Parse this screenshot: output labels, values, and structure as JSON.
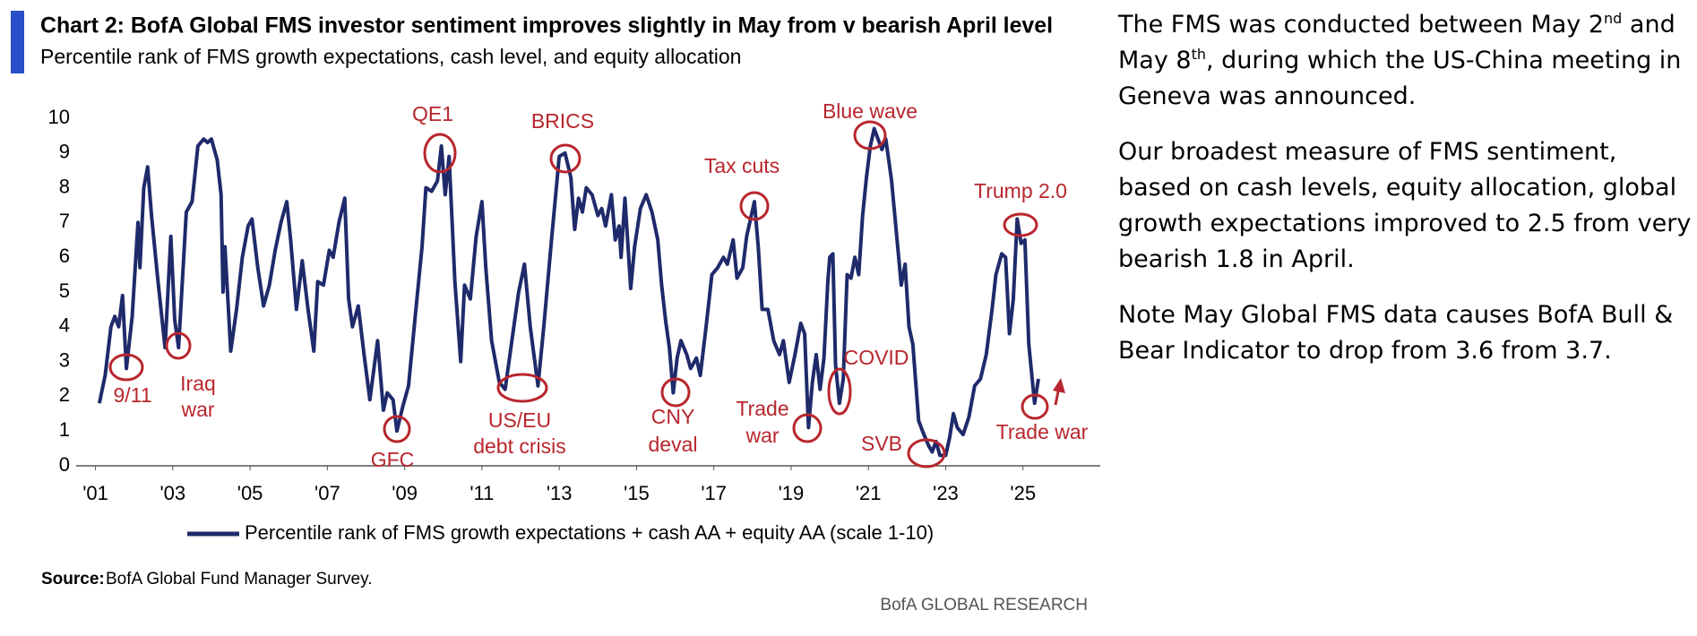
{
  "chart_data": {
    "type": "line",
    "title": "Chart 2: BofA Global FMS investor sentiment improves slightly in May from v bearish April level",
    "subtitle": "Percentile rank of FMS growth expectations, cash level, and equity allocation",
    "source_label": "Source:",
    "source_text": "BofA Global Fund Manager Survey.",
    "footer": "BofA GLOBAL RESEARCH",
    "xlim": [
      2000.5,
      2027
    ],
    "ylim": [
      0,
      10
    ],
    "yticks": [
      0,
      1,
      2,
      3,
      4,
      5,
      6,
      7,
      8,
      9,
      10
    ],
    "xticks": [
      {
        "value": 2001,
        "label": "'01"
      },
      {
        "value": 2003,
        "label": "'03"
      },
      {
        "value": 2005,
        "label": "'05"
      },
      {
        "value": 2007,
        "label": "'07"
      },
      {
        "value": 2009,
        "label": "'09"
      },
      {
        "value": 2011,
        "label": "'11"
      },
      {
        "value": 2013,
        "label": "'13"
      },
      {
        "value": 2015,
        "label": "'15"
      },
      {
        "value": 2017,
        "label": "'17"
      },
      {
        "value": 2019,
        "label": "'19"
      },
      {
        "value": 2021,
        "label": "'21"
      },
      {
        "value": 2023,
        "label": "'23"
      },
      {
        "value": 2025,
        "label": "'25"
      }
    ],
    "grid": false,
    "annotation_color": "#b8262d",
    "annotations": [
      [
        "9/11"
      ],
      [
        "Iraq",
        "war"
      ],
      [
        "GFC"
      ],
      [
        "QE1"
      ],
      [
        "US/EU",
        "debt crisis"
      ],
      [
        "BRICS"
      ],
      [
        "CNY",
        "deval"
      ],
      [
        "Tax cuts"
      ],
      [
        "Trade",
        "war"
      ],
      [
        "COVID"
      ],
      [
        "Blue wave"
      ],
      [
        "SVB"
      ],
      [
        "Trump 2.0"
      ],
      [
        "Trade war"
      ]
    ],
    "x": [
      2001.1,
      2001.25,
      2001.4,
      2001.5,
      2001.6,
      2001.7,
      2001.8,
      2001.95,
      2002.1,
      2002.15,
      2002.25,
      2002.35,
      2002.45,
      2002.6,
      2002.8,
      2002.95,
      2003.05,
      2003.15,
      2003.35,
      2003.5,
      2003.65,
      2003.8,
      2003.9,
      2004.0,
      2004.15,
      2004.25,
      2004.3,
      2004.35,
      2004.5,
      2004.65,
      2004.8,
      2004.95,
      2005.05,
      2005.2,
      2005.35,
      2005.5,
      2005.65,
      2005.8,
      2005.95,
      2006.05,
      2006.2,
      2006.35,
      2006.5,
      2006.65,
      2006.75,
      2006.9,
      2007.05,
      2007.15,
      2007.3,
      2007.45,
      2007.55,
      2007.65,
      2007.8,
      2007.95,
      2008.1,
      2008.3,
      2008.45,
      2008.55,
      2008.7,
      2008.8,
      2008.95,
      2009.1,
      2009.3,
      2009.45,
      2009.55,
      2009.7,
      2009.85,
      2009.95,
      2010.05,
      2010.15,
      2010.3,
      2010.45,
      2010.55,
      2010.7,
      2010.85,
      2011.0,
      2011.1,
      2011.25,
      2011.45,
      2011.6,
      2011.8,
      2011.95,
      2012.1,
      2012.25,
      2012.45,
      2012.6,
      2012.8,
      2013.0,
      2013.15,
      2013.3,
      2013.4,
      2013.5,
      2013.6,
      2013.7,
      2013.85,
      2014.0,
      2014.1,
      2014.2,
      2014.35,
      2014.45,
      2014.55,
      2014.6,
      2014.7,
      2014.85,
      2014.95,
      2015.1,
      2015.25,
      2015.4,
      2015.55,
      2015.65,
      2015.75,
      2015.85,
      2015.95,
      2016.05,
      2016.15,
      2016.3,
      2016.4,
      2016.55,
      2016.65,
      2016.8,
      2016.95,
      2017.1,
      2017.25,
      2017.35,
      2017.5,
      2017.6,
      2017.75,
      2017.85,
      2017.95,
      2018.05,
      2018.15,
      2018.25,
      2018.4,
      2018.55,
      2018.7,
      2018.8,
      2018.95,
      2019.1,
      2019.25,
      2019.35,
      2019.45,
      2019.55,
      2019.65,
      2019.75,
      2019.85,
      2019.95,
      2020.0,
      2020.08,
      2020.15,
      2020.25,
      2020.35,
      2020.45,
      2020.55,
      2020.65,
      2020.75,
      2020.85,
      2020.95,
      2021.05,
      2021.15,
      2021.25,
      2021.35,
      2021.45,
      2021.6,
      2021.75,
      2021.85,
      2021.95,
      2022.05,
      2022.15,
      2022.3,
      2022.4,
      2022.55,
      2022.65,
      2022.75,
      2022.85,
      2023.0,
      2023.1,
      2023.2,
      2023.3,
      2023.45,
      2023.6,
      2023.75,
      2023.9,
      2024.05,
      2024.2,
      2024.3,
      2024.45,
      2024.55,
      2024.65,
      2024.75,
      2024.85,
      2024.95,
      2025.05,
      2025.15,
      2025.3,
      2025.4
    ],
    "series": [
      {
        "name": "Percentile rank of FMS growth expectations + cash AA + equity AA (scale 1-10)",
        "color": "#1f2a6b",
        "values": [
          1.8,
          2.6,
          4.0,
          4.3,
          4.0,
          4.9,
          2.8,
          4.3,
          7.0,
          5.7,
          8.0,
          8.6,
          7.2,
          5.5,
          3.4,
          6.6,
          4.2,
          3.4,
          7.3,
          7.6,
          9.2,
          9.4,
          9.3,
          9.4,
          8.8,
          7.8,
          5.0,
          6.3,
          3.3,
          4.5,
          6.0,
          6.9,
          7.1,
          5.7,
          4.6,
          5.2,
          6.2,
          7.0,
          7.6,
          6.5,
          4.5,
          5.9,
          4.5,
          3.3,
          5.3,
          5.2,
          6.2,
          6.0,
          7.0,
          7.7,
          4.8,
          4.0,
          4.6,
          3.2,
          1.9,
          3.6,
          1.6,
          2.1,
          1.9,
          1.0,
          1.7,
          2.3,
          4.6,
          6.3,
          8.0,
          7.9,
          8.2,
          9.2,
          7.8,
          8.9,
          5.3,
          3.0,
          5.2,
          4.8,
          6.6,
          7.6,
          5.7,
          3.6,
          2.4,
          2.2,
          3.8,
          5.0,
          5.8,
          4.0,
          2.3,
          4.0,
          6.5,
          8.9,
          9.0,
          8.3,
          6.8,
          7.7,
          7.3,
          8.0,
          7.8,
          7.2,
          7.4,
          6.9,
          7.8,
          6.5,
          6.9,
          6.0,
          7.7,
          5.1,
          6.3,
          7.4,
          7.8,
          7.3,
          6.5,
          5.2,
          4.2,
          3.4,
          2.1,
          3.1,
          3.6,
          3.2,
          2.8,
          3.1,
          2.6,
          4.0,
          5.5,
          5.7,
          6.0,
          5.8,
          6.5,
          5.4,
          5.7,
          6.6,
          7.1,
          7.6,
          6.3,
          4.5,
          4.5,
          3.6,
          3.2,
          3.6,
          2.4,
          3.2,
          4.1,
          3.8,
          1.1,
          2.4,
          3.2,
          2.2,
          3.1,
          5.3,
          6.0,
          6.1,
          2.9,
          1.8,
          2.5,
          5.5,
          5.4,
          6.0,
          5.5,
          7.2,
          8.3,
          9.2,
          9.7,
          9.4,
          9.1,
          9.4,
          8.2,
          6.4,
          5.2,
          5.8,
          4.0,
          3.5,
          1.3,
          1.0,
          0.6,
          0.4,
          0.7,
          0.3,
          0.3,
          0.8,
          1.5,
          1.1,
          0.9,
          1.4,
          2.3,
          2.5,
          3.2,
          4.5,
          5.5,
          6.1,
          6.0,
          3.8,
          4.8,
          7.1,
          6.4,
          6.5,
          3.5,
          1.8,
          2.5
        ]
      }
    ]
  },
  "sidebar": {
    "paragraphs": [
      [
        "The FMS was conducted between May 2",
        {
          "sup": "nd"
        },
        " and May 8",
        {
          "sup": "th"
        },
        ", during which the US-China meeting in Geneva was announced."
      ],
      [
        "Our broadest measure of FMS sentiment, based on cash levels, equity allocation, global growth expectations improved to 2.5 from very bearish 1.8 in April."
      ],
      [
        "Note May Global FMS data causes BofA Bull & Bear Indicator to drop from 3.6 from 3.7."
      ]
    ]
  }
}
